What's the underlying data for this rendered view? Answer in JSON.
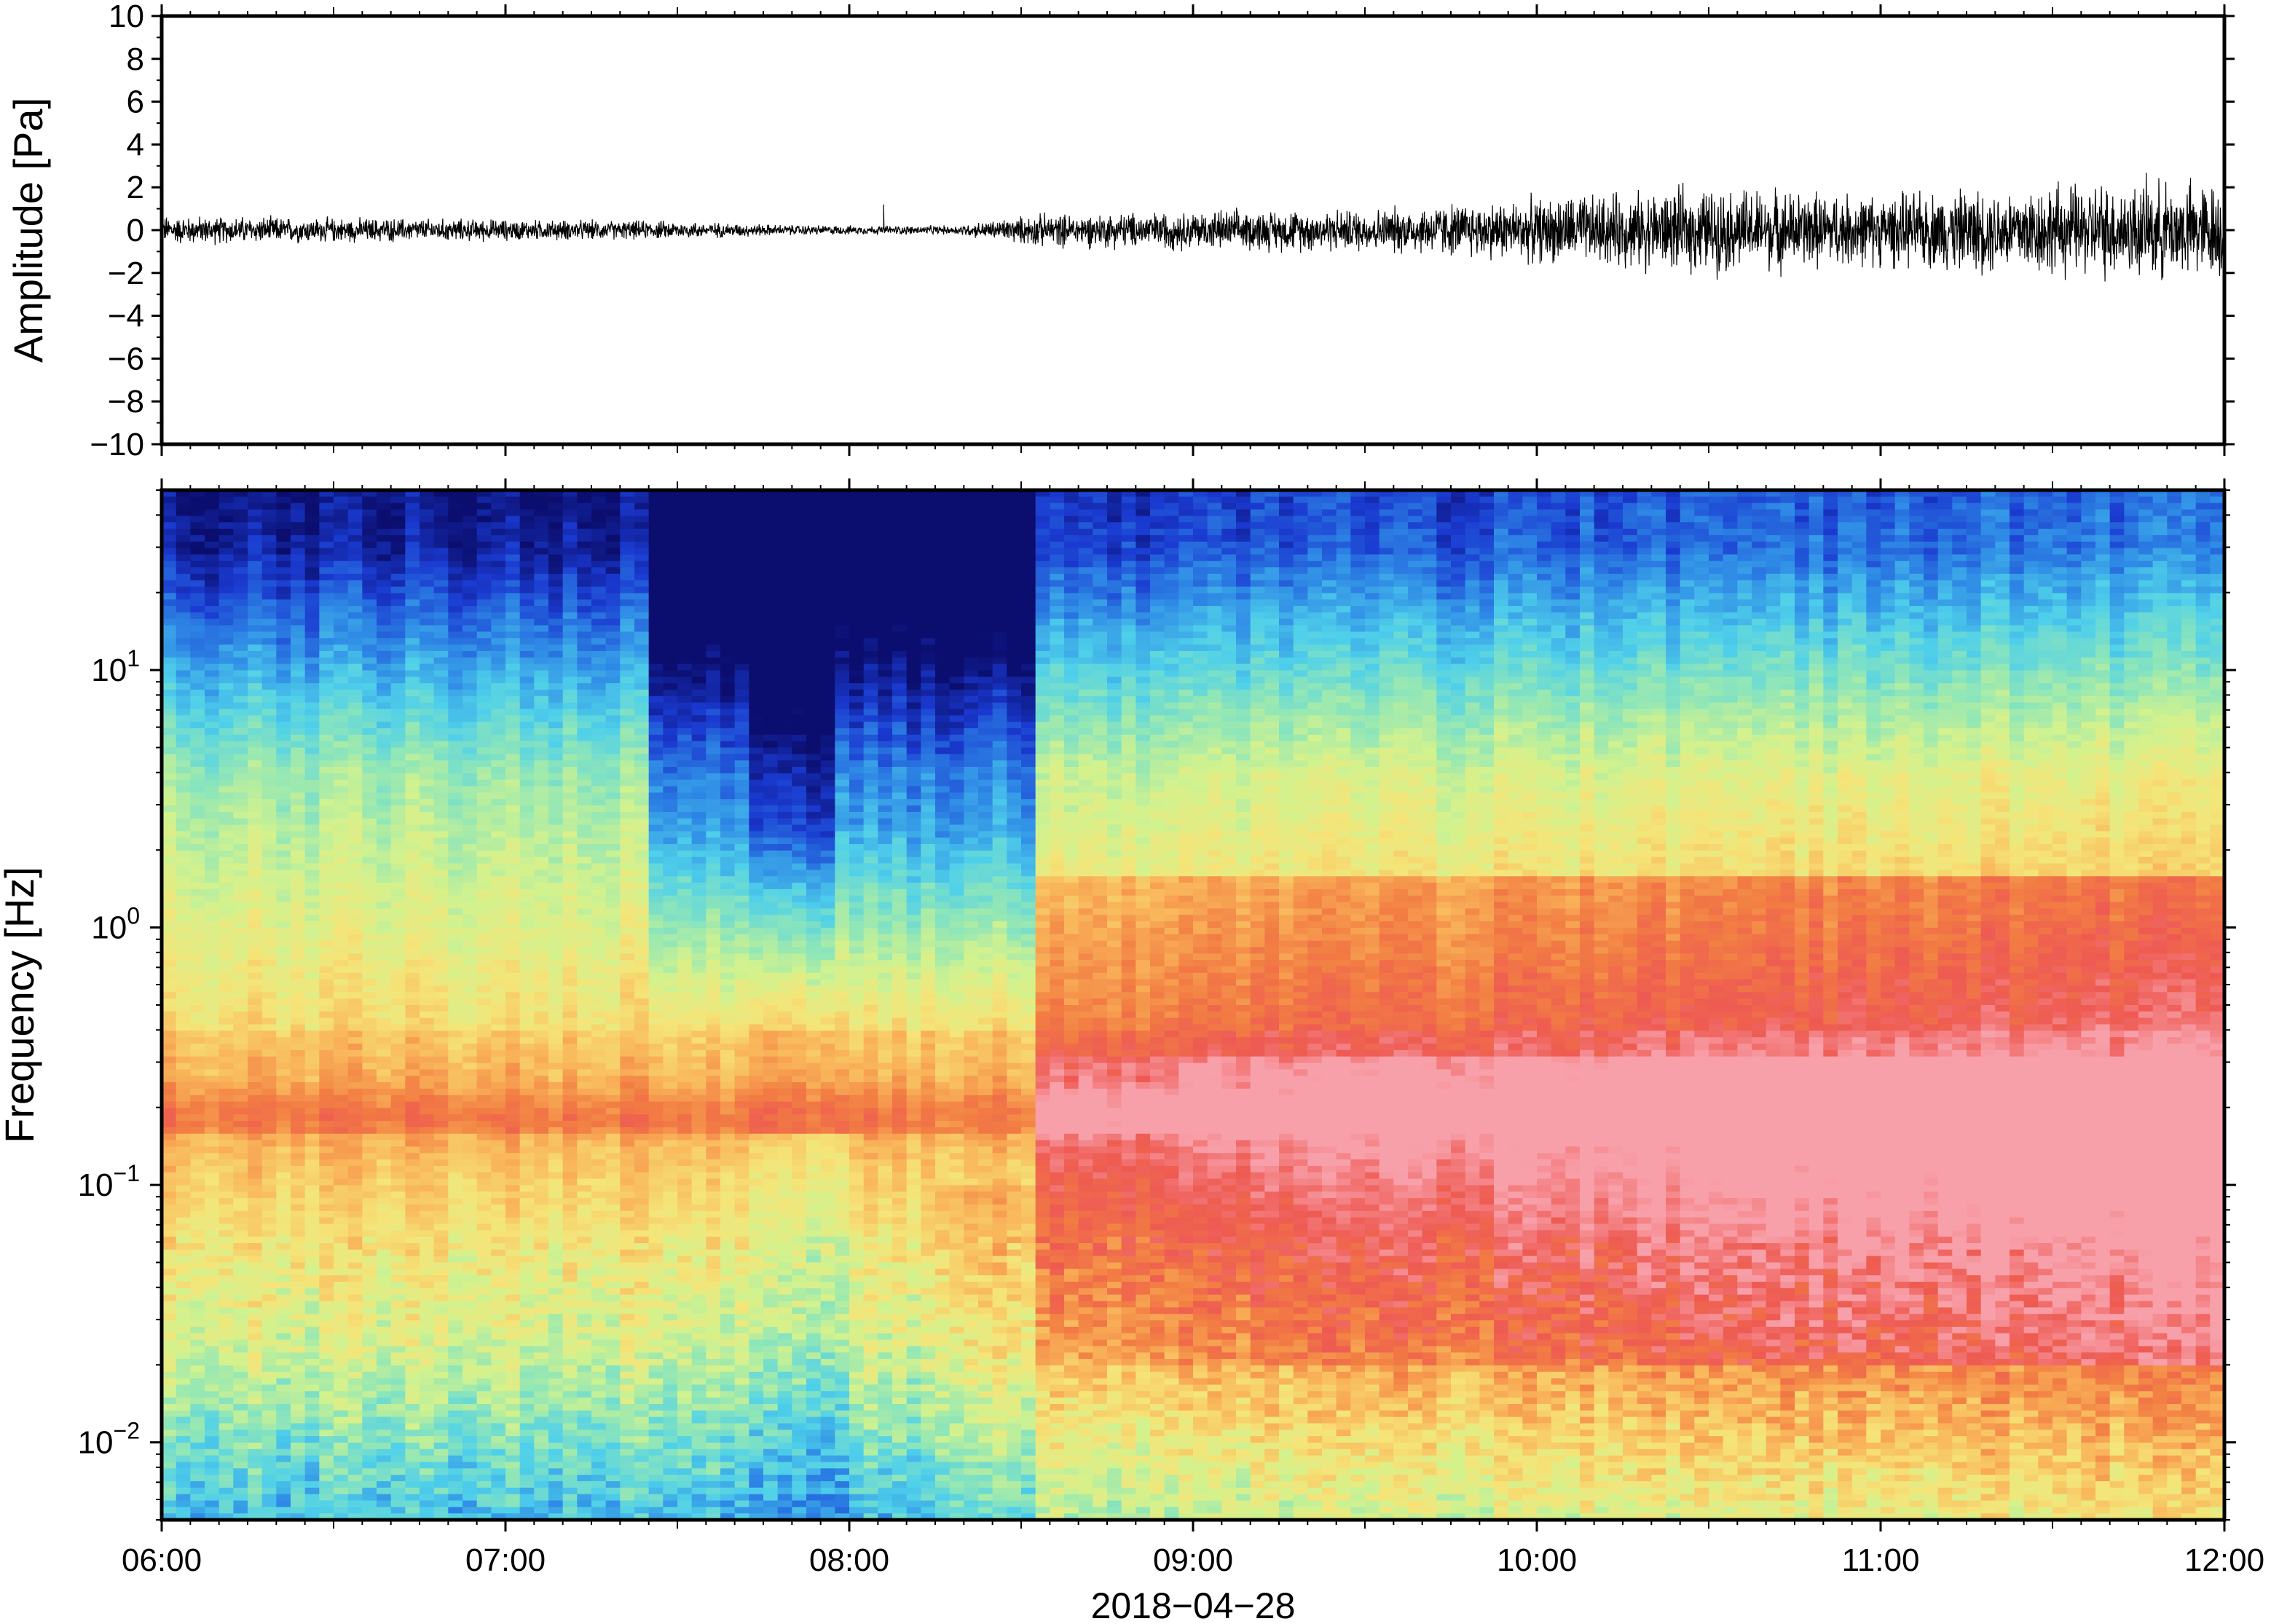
{
  "chart_data": [
    {
      "type": "line",
      "panel": "waveform",
      "ylabel": "Amplitude [Pa]",
      "xlabel": "",
      "ylim": [
        -10,
        10
      ],
      "yticks": [
        {
          "value": 10,
          "label": "10"
        },
        {
          "value": 8,
          "label": "8"
        },
        {
          "value": 6,
          "label": "6"
        },
        {
          "value": 4,
          "label": "4"
        },
        {
          "value": 2,
          "label": "2"
        },
        {
          "value": 0,
          "label": "0"
        },
        {
          "value": -2,
          "label": "−2"
        },
        {
          "value": -4,
          "label": "−4"
        },
        {
          "value": -6,
          "label": "−6"
        },
        {
          "value": -8,
          "label": "−8"
        },
        {
          "value": -10,
          "label": "−10"
        }
      ],
      "xlim": [
        "06:00",
        "12:00"
      ],
      "envelope": {
        "description_hours": [
          6.0,
          6.5,
          7.0,
          7.5,
          7.8,
          8.0,
          8.3,
          8.55,
          9.0,
          9.5,
          10.0,
          10.5,
          11.0,
          11.5,
          12.0
        ],
        "amplitude_pa": [
          0.8,
          0.7,
          0.6,
          0.5,
          0.3,
          0.25,
          0.25,
          0.9,
          1.1,
          1.2,
          1.8,
          2.4,
          2.0,
          2.6,
          2.8
        ]
      },
      "spikes": [
        {
          "time": "08:06",
          "value": 1.2
        }
      ],
      "color": "#000000"
    },
    {
      "type": "heatmap",
      "panel": "spectrogram",
      "ylabel": "Frequency [Hz]",
      "xlabel": "2018−04−28",
      "yscale": "log",
      "ylim": [
        0.005,
        50
      ],
      "yticks": [
        {
          "value": 10,
          "base": "10",
          "exp": "1"
        },
        {
          "value": 1,
          "base": "10",
          "exp": "0"
        },
        {
          "value": 0.1,
          "base": "10",
          "exp": "−1"
        },
        {
          "value": 0.01,
          "base": "10",
          "exp": "−2"
        }
      ],
      "xlim": [
        "06:00",
        "12:00"
      ],
      "xticks": [
        "06:00",
        "07:00",
        "08:00",
        "09:00",
        "10:00",
        "11:00",
        "12:00"
      ],
      "colormap": [
        "#0b0e6e",
        "#1a3ad0",
        "#2f8be6",
        "#4fd0ea",
        "#8fe6b8",
        "#d2f28e",
        "#f5e478",
        "#f9b55a",
        "#f27e43",
        "#ee5a52",
        "#f8a0aa"
      ]
    }
  ]
}
